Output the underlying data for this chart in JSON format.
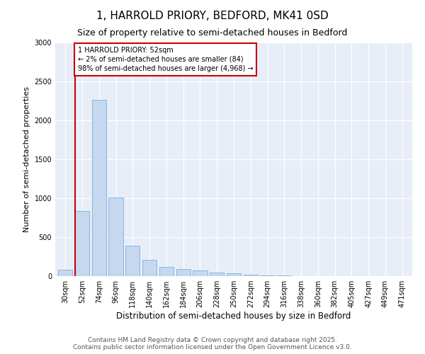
{
  "title": "1, HARROLD PRIORY, BEDFORD, MK41 0SD",
  "subtitle": "Size of property relative to semi-detached houses in Bedford",
  "xlabel": "Distribution of semi-detached houses by size in Bedford",
  "ylabel": "Number of semi-detached properties",
  "categories": [
    "30sqm",
    "52sqm",
    "74sqm",
    "96sqm",
    "118sqm",
    "140sqm",
    "162sqm",
    "184sqm",
    "206sqm",
    "228sqm",
    "250sqm",
    "272sqm",
    "294sqm",
    "316sqm",
    "338sqm",
    "360sqm",
    "382sqm",
    "405sqm",
    "427sqm",
    "449sqm",
    "471sqm"
  ],
  "values": [
    84,
    840,
    2260,
    1010,
    390,
    210,
    120,
    90,
    70,
    50,
    40,
    20,
    10,
    5,
    3,
    2,
    1,
    1,
    0,
    0,
    0
  ],
  "bar_color": "#c5d8f0",
  "bar_edge_color": "#7bafd4",
  "highlight_index": 1,
  "highlight_line_color": "#cc0000",
  "annotation_text": "1 HARROLD PRIORY: 52sqm\n← 2% of semi-detached houses are smaller (84)\n98% of semi-detached houses are larger (4,968) →",
  "annotation_box_color": "#ffffff",
  "annotation_box_edge_color": "#cc0000",
  "ylim": [
    0,
    3000
  ],
  "yticks": [
    0,
    500,
    1000,
    1500,
    2000,
    2500,
    3000
  ],
  "footer_text": "Contains HM Land Registry data © Crown copyright and database right 2025.\nContains public sector information licensed under the Open Government Licence v3.0.",
  "bg_color": "#ffffff",
  "plot_bg_color": "#e8eef8",
  "title_fontsize": 11,
  "subtitle_fontsize": 9,
  "axis_label_fontsize": 8,
  "tick_fontsize": 7,
  "footer_fontsize": 6.5
}
